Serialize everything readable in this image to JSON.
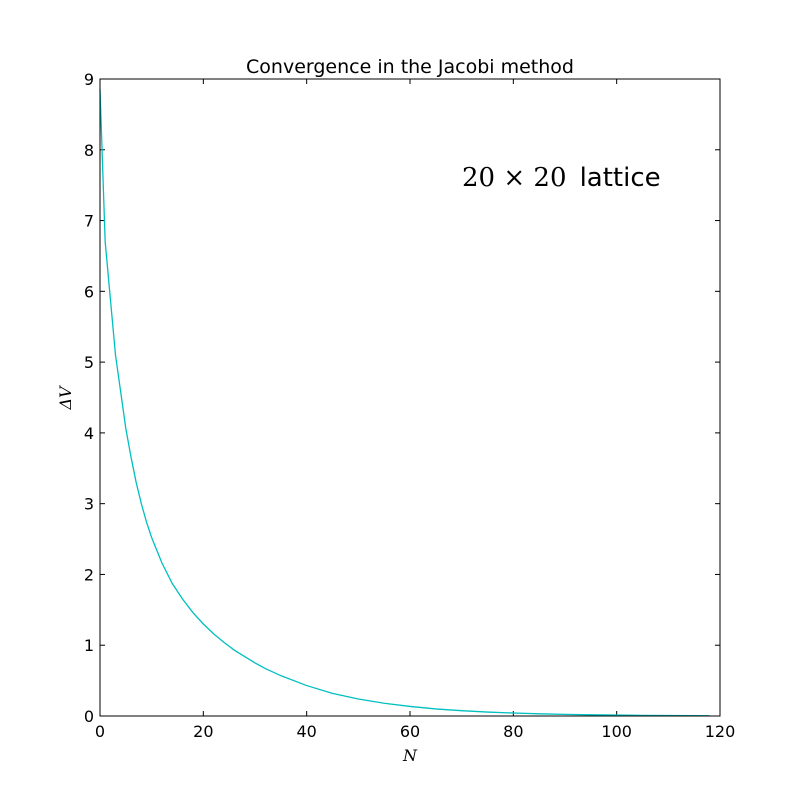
{
  "chart_data": {
    "type": "line",
    "title": "Convergence in the Jacobi method",
    "xlabel": "N",
    "ylabel": "ΔV",
    "xlim": [
      0,
      120
    ],
    "ylim": [
      0,
      9
    ],
    "xticks": [
      0,
      20,
      40,
      60,
      80,
      100,
      120
    ],
    "yticks": [
      0,
      1,
      2,
      3,
      4,
      5,
      6,
      7,
      8,
      9
    ],
    "grid": false,
    "annotation": {
      "math": "20 × 20",
      "text": "lattice"
    },
    "line_color": "#00bfbf",
    "series": [
      {
        "x": [
          0,
          1,
          2,
          3,
          4,
          5,
          6,
          7,
          8,
          9,
          10,
          12,
          14,
          16,
          18,
          20,
          22,
          24,
          26,
          28,
          30,
          32,
          35,
          40,
          45,
          50,
          55,
          60,
          65,
          70,
          75,
          80,
          85,
          90,
          95,
          100,
          105,
          110,
          115,
          118
        ],
        "values": [
          8.85,
          6.7,
          5.9,
          5.1,
          4.58,
          4.06,
          3.66,
          3.3,
          3.0,
          2.74,
          2.52,
          2.16,
          1.87,
          1.65,
          1.46,
          1.3,
          1.16,
          1.04,
          0.93,
          0.84,
          0.75,
          0.67,
          0.57,
          0.43,
          0.32,
          0.24,
          0.18,
          0.135,
          0.1,
          0.075,
          0.056,
          0.042,
          0.031,
          0.023,
          0.017,
          0.013,
          0.009,
          0.007,
          0.005,
          0.004
        ]
      }
    ]
  }
}
